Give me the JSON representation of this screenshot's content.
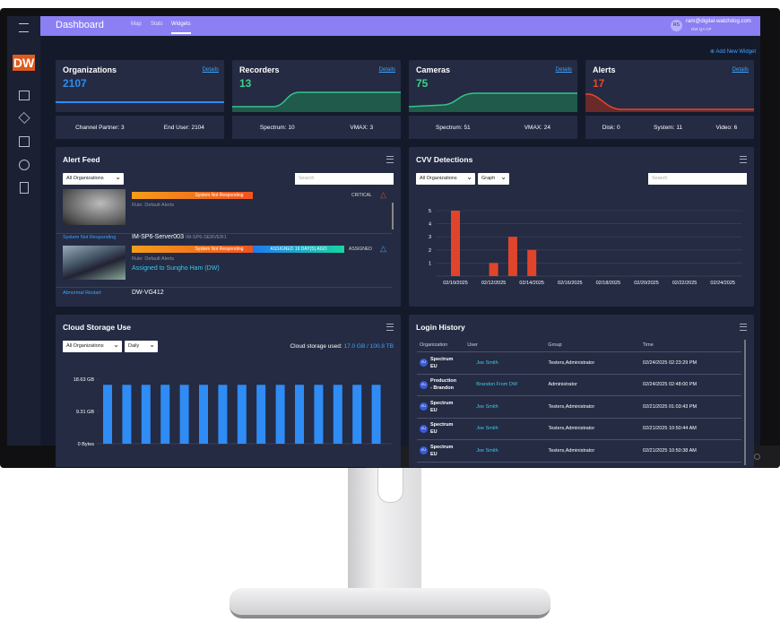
{
  "logo": "DW",
  "header": {
    "title": "Dashboard",
    "nav": [
      "Map",
      "Stats",
      "Widgets"
    ],
    "user_initials": "RS",
    "user_email": "ram@digital-watchdog.com",
    "user_org": "DW QA CP"
  },
  "add_widget": "Add New Widget",
  "cards": [
    {
      "title": "Organizations",
      "value": 2107,
      "details": "Details",
      "stats": [
        "Channel Partner: 3",
        "End User: 2104"
      ]
    },
    {
      "title": "Recorders",
      "value": 13,
      "details": "Details",
      "stats": [
        "Spectrum: 10",
        "VMAX: 3"
      ]
    },
    {
      "title": "Cameras",
      "value": 75,
      "details": "Details",
      "stats": [
        "Spectrum: 51",
        "VMAX: 24"
      ]
    },
    {
      "title": "Alerts",
      "value": 17,
      "details": "Details",
      "stats": [
        "Disk: 0",
        "System: 11",
        "Video: 6"
      ]
    }
  ],
  "alert_feed": {
    "title": "Alert Feed",
    "filter": "All Organizations",
    "search": "Search",
    "alerts": [
      {
        "badges": [
          "System Not Responding"
        ],
        "rule": "Rule: Default Alerts",
        "status": "CRITICAL"
      },
      {
        "type": "System Not Responding",
        "device": "IM-SP6-Server003",
        "server": "IM-SP6-SERVER1",
        "badges": [
          "System Not Responding",
          "ASSIGNED 19 DAY(S) AGO"
        ],
        "rule": "Rule: Default Alerts",
        "status": "ASSIGNED",
        "assignee": "Assigned to Sungho Ham (DW)"
      },
      {
        "type": "Abnormal Restart",
        "device": "DW-VG412"
      }
    ]
  },
  "cvv": {
    "title": "CVV Detections",
    "filters": [
      "All Organizations",
      "Graph"
    ],
    "search": "Search",
    "chart_data": {
      "type": "bar",
      "categories": [
        "02/10/2025",
        null,
        "02/12/2025",
        null,
        "02/14/2025",
        null,
        "02/16/2025",
        null,
        "02/18/2025",
        null,
        "02/20/2025",
        null,
        "02/22/2025",
        null,
        "02/24/2025"
      ],
      "values": [
        5,
        0,
        1,
        3,
        2,
        0,
        0,
        0,
        0,
        0,
        0,
        0,
        0,
        0,
        0
      ],
      "color": "#e0452b",
      "ylim": [
        0,
        5
      ],
      "yticks": [
        1,
        2,
        3,
        4,
        5
      ],
      "grid": true
    }
  },
  "cloud": {
    "title": "Cloud Storage Use",
    "filters": [
      "All Organizations",
      "Daily"
    ],
    "used_label": "Cloud storage used:",
    "used_value": "17.0 GB / 100.8 TB",
    "chart_data": {
      "type": "bar",
      "values": [
        17,
        17,
        17,
        17,
        17,
        17,
        17,
        17,
        17,
        17,
        17,
        17,
        17,
        17,
        17
      ],
      "color": "#2f8cf5",
      "ylim": [
        0,
        18.63
      ],
      "yticks": [
        {
          "value": 0,
          "label": "0 Bytes"
        },
        {
          "value": 9.31,
          "label": "9.31 GB"
        },
        {
          "value": 18.63,
          "label": "18.63 GB"
        }
      ]
    }
  },
  "login": {
    "title": "Login History",
    "columns": [
      "Organization",
      "User",
      "Group",
      "Time"
    ],
    "rows": [
      {
        "initials": "EU",
        "org": "Spectrum EU",
        "user": "Joe Smith",
        "group": "Testers,Administrator",
        "time": "02/24/2025 02:23:29 PM"
      },
      {
        "initials": "EU",
        "org": "Production - Brandon",
        "user": "Brandon From DW",
        "group": "Administrator",
        "time": "02/24/2025 02:48:00 PM"
      },
      {
        "initials": "EU",
        "org": "Spectrum EU",
        "user": "Joe Smith",
        "group": "Testers,Administrator",
        "time": "02/21/2025 01:03:43 PM"
      },
      {
        "initials": "EU",
        "org": "Spectrum EU",
        "user": "Joe Smith",
        "group": "Testers,Administrator",
        "time": "02/21/2025 10:50:44 AM"
      },
      {
        "initials": "EU",
        "org": "Spectrum EU",
        "user": "Joe Smith",
        "group": "Testers,Administrator",
        "time": "02/21/2025 10:50:38 AM"
      }
    ]
  }
}
